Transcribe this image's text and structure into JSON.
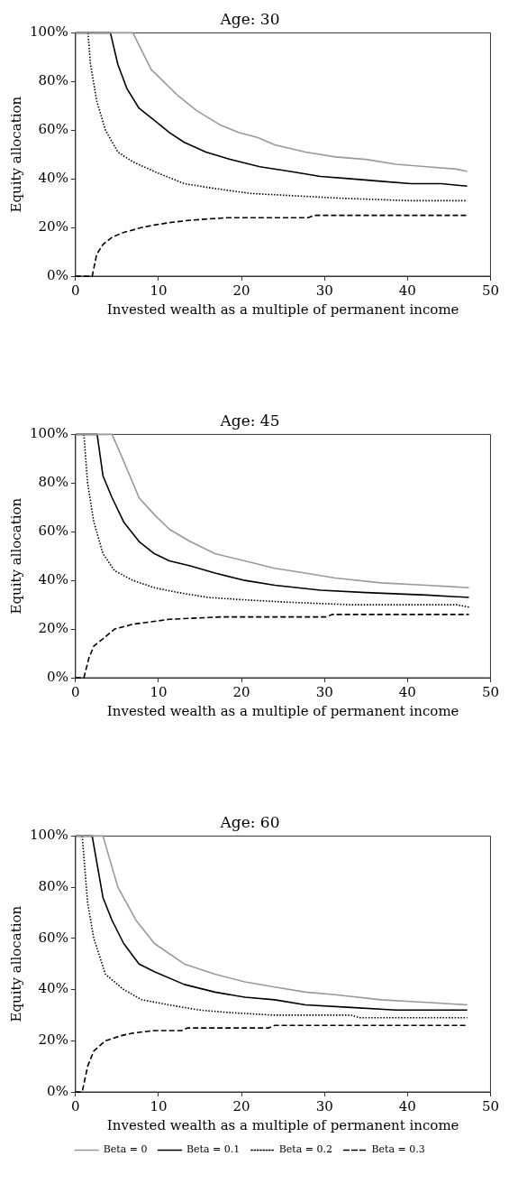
{
  "chart_data": [
    {
      "type": "line",
      "title": "Age: 30",
      "xlabel": "Invested wealth as a multiple of permanent income",
      "ylabel": "Equity allocation",
      "xlim": [
        0,
        50
      ],
      "xticks": [
        0,
        10,
        20,
        30,
        40,
        50
      ],
      "ylim": [
        0,
        100
      ],
      "yticks": [
        {
          "value": 0,
          "label": "0%"
        },
        {
          "value": 20,
          "label": "20%"
        },
        {
          "value": 40,
          "label": "40%"
        },
        {
          "value": 60,
          "label": "60%"
        },
        {
          "value": 80,
          "label": "80%"
        },
        {
          "value": 100,
          "label": "100%"
        }
      ],
      "marker": "none",
      "legend": false,
      "series": [
        {
          "color": "#999999",
          "line_style": "solid",
          "x": [
            0,
            6.9,
            9.1,
            12.4,
            14.6,
            17.5,
            19.7,
            21.9,
            24,
            27.7,
            31.3,
            35,
            38.6,
            42.3,
            45.9,
            47.2
          ],
          "values": [
            100,
            100,
            85,
            74,
            68,
            62,
            59,
            57,
            54,
            51,
            49,
            48,
            46,
            45,
            44,
            43
          ]
        },
        {
          "color": "#000000",
          "line_style": "solid",
          "x": [
            0,
            4.2,
            5.1,
            6.2,
            7.65,
            9.5,
            11.3,
            13.1,
            15.7,
            18.6,
            22.2,
            25.9,
            29.5,
            33.2,
            36.8,
            40.4,
            44.1,
            47.2
          ],
          "values": [
            100,
            100,
            87,
            77,
            69,
            64,
            59,
            55,
            51,
            48,
            45,
            43,
            41,
            40,
            39,
            38,
            38,
            37
          ]
        },
        {
          "color": "#000000",
          "line_style": "dotted",
          "x": [
            1.5,
            1.8,
            2.55,
            3.6,
            5.1,
            6.9,
            9.5,
            13.1,
            16.8,
            21.1,
            26.6,
            32.1,
            40.4,
            47.2
          ],
          "values": [
            100,
            87,
            72,
            60,
            51,
            47,
            43,
            38,
            36,
            34,
            33,
            32,
            31,
            31
          ]
        },
        {
          "color": "#000000",
          "line_style": "dashed",
          "x": [
            0,
            2,
            2.55,
            3.3,
            4.4,
            5.8,
            8,
            9.5,
            11.3,
            13.8,
            18.2,
            28,
            28.8,
            47.2
          ],
          "values": [
            0,
            0,
            9,
            13,
            16,
            18,
            20,
            21,
            22,
            23,
            24,
            24,
            25,
            25
          ]
        }
      ]
    },
    {
      "type": "line",
      "title": "Age: 45",
      "xlabel": "Invested wealth as a multiple of permanent income",
      "ylabel": "Equity allocation",
      "xlim": [
        0,
        50
      ],
      "xticks": [
        0,
        10,
        20,
        30,
        40,
        50
      ],
      "ylim": [
        0,
        100
      ],
      "yticks": [
        {
          "value": 0,
          "label": "0%"
        },
        {
          "value": 20,
          "label": "20%"
        },
        {
          "value": 40,
          "label": "40%"
        },
        {
          "value": 60,
          "label": "60%"
        },
        {
          "value": 80,
          "label": "80%"
        },
        {
          "value": 100,
          "label": "100%"
        }
      ],
      "marker": "none",
      "legend": false,
      "series": [
        {
          "color": "#999999",
          "line_style": "solid",
          "x": [
            0,
            4.4,
            5.8,
            7.65,
            9.5,
            11.3,
            13.8,
            16.8,
            20.4,
            24,
            27.7,
            31.3,
            36.8,
            42.3,
            47.4
          ],
          "values": [
            100,
            100,
            89,
            74,
            67,
            61,
            56,
            51,
            48,
            45,
            43,
            41,
            39,
            38,
            37
          ]
        },
        {
          "color": "#000000",
          "line_style": "solid",
          "x": [
            0,
            2.6,
            3.3,
            4.4,
            5.8,
            7.65,
            9.5,
            11.3,
            13.8,
            16.8,
            20.4,
            24,
            29.5,
            35,
            42.3,
            47.4
          ],
          "values": [
            100,
            100,
            83,
            74,
            64,
            56,
            51,
            48,
            46,
            43,
            40,
            38,
            36,
            35,
            34,
            33
          ]
        },
        {
          "color": "#000000",
          "line_style": "dotted",
          "x": [
            1,
            1.45,
            2.2,
            3.3,
            4.7,
            6.9,
            9.5,
            12.4,
            16,
            20.4,
            25.9,
            33.2,
            45.9,
            47.4
          ],
          "values": [
            100,
            80,
            64,
            51,
            44,
            40,
            37,
            35,
            33,
            32,
            31,
            30,
            30,
            29
          ]
        },
        {
          "color": "#000000",
          "line_style": "dashed",
          "x": [
            0,
            1,
            1.6,
            2.2,
            3.3,
            4.7,
            6.9,
            9.1,
            11.3,
            17.5,
            30.2,
            30.9,
            47.4
          ],
          "values": [
            0,
            0,
            8,
            13,
            16,
            20,
            22,
            23,
            24,
            25,
            25,
            26,
            26
          ]
        }
      ]
    },
    {
      "type": "line",
      "title": "Age: 60",
      "xlabel": "Invested wealth as a multiple of permanent income",
      "ylabel": "Equity allocation",
      "xlim": [
        0,
        50
      ],
      "xticks": [
        0,
        10,
        20,
        30,
        40,
        50
      ],
      "ylim": [
        0,
        100
      ],
      "yticks": [
        {
          "value": 0,
          "label": "0%"
        },
        {
          "value": 20,
          "label": "20%"
        },
        {
          "value": 40,
          "label": "40%"
        },
        {
          "value": 60,
          "label": "60%"
        },
        {
          "value": 80,
          "label": "80%"
        },
        {
          "value": 100,
          "label": "100%"
        }
      ],
      "marker": "none",
      "legend": "bottom",
      "series": [
        {
          "name": "Beta = 0",
          "color": "#999999",
          "line_style": "solid",
          "x": [
            0,
            3.3,
            5.1,
            7.3,
            9.5,
            13.1,
            16.8,
            20.4,
            24,
            27.7,
            31.3,
            36.8,
            42.3,
            47.2
          ],
          "values": [
            100,
            100,
            80,
            67,
            58,
            50,
            46,
            43,
            41,
            39,
            38,
            36,
            35,
            34
          ]
        },
        {
          "name": "Beta = 0.1",
          "color": "#000000",
          "line_style": "solid",
          "x": [
            0,
            2,
            3.3,
            4.4,
            5.8,
            7.65,
            9.5,
            13.1,
            16.8,
            20.4,
            24,
            27.7,
            33.2,
            38.6,
            47.2
          ],
          "values": [
            100,
            100,
            76,
            67,
            58,
            50,
            47,
            42,
            39,
            37,
            36,
            34,
            33,
            32,
            32
          ]
        },
        {
          "name": "Beta = 0.2",
          "color": "#000000",
          "line_style": "dotted",
          "x": [
            0.8,
            1.45,
            2.2,
            3.6,
            5.8,
            8,
            11.3,
            14.9,
            18.6,
            24,
            33.2,
            34.2,
            47.2
          ],
          "values": [
            100,
            74,
            60,
            46,
            40,
            36,
            34,
            32,
            31,
            30,
            30,
            29,
            29
          ]
        },
        {
          "name": "Beta = 0.3",
          "color": "#000000",
          "line_style": "dashed",
          "x": [
            0,
            0.8,
            1.45,
            2.2,
            3.6,
            5.5,
            6.9,
            9.5,
            12.8,
            13.5,
            23.3,
            24,
            47.2
          ],
          "values": [
            0,
            0,
            10,
            16,
            20,
            22,
            23,
            24,
            24,
            25,
            25,
            26,
            26
          ]
        }
      ]
    }
  ]
}
